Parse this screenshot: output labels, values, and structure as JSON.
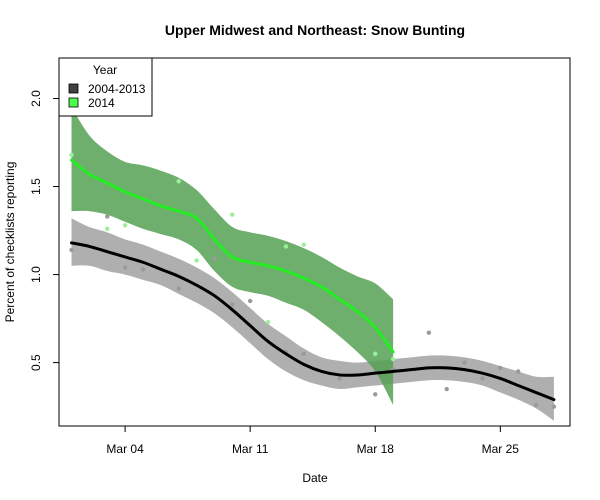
{
  "chart_data": {
    "type": "line",
    "title": "Upper Midwest and Northeast: Snow Bunting",
    "xlabel": "Date",
    "ylabel": "Percent of checklists reporting",
    "x_tick_labels": [
      {
        "label": "Mar 04",
        "day": 4
      },
      {
        "label": "Mar 11",
        "day": 11
      },
      {
        "label": "Mar 18",
        "day": 18
      },
      {
        "label": "Mar 25",
        "day": 25
      }
    ],
    "y_ticks": [
      0.5,
      1.0,
      1.5,
      2.0
    ],
    "y_tick_labels": [
      "0.5",
      "1.0",
      "1.5",
      "2.0"
    ],
    "xlim": [
      0.3,
      28.9
    ],
    "ylim": [
      0.14,
      2.23
    ],
    "grid": false,
    "legend": {
      "title": "Year",
      "position": "top-left",
      "entries": [
        {
          "name": "2004-2013",
          "color": "#404040"
        },
        {
          "name": "2014",
          "color": "#4cff4c"
        }
      ]
    },
    "series": [
      {
        "name": "2004-2013",
        "line_color": "#000000",
        "band_color": "#a6a6a6",
        "point_color": "#9a9a9a",
        "x": [
          1,
          2,
          3,
          4,
          5,
          6,
          7,
          8,
          9,
          10,
          11,
          12,
          13,
          14,
          15,
          16,
          17,
          18,
          19,
          20,
          21,
          22,
          23,
          24,
          25,
          26,
          27,
          28
        ],
        "fit": [
          1.18,
          1.16,
          1.13,
          1.1,
          1.07,
          1.03,
          0.99,
          0.94,
          0.88,
          0.8,
          0.71,
          0.62,
          0.55,
          0.49,
          0.45,
          0.43,
          0.43,
          0.44,
          0.45,
          0.46,
          0.47,
          0.47,
          0.46,
          0.44,
          0.41,
          0.37,
          0.33,
          0.29
        ],
        "lower": [
          1.05,
          1.05,
          1.02,
          1.0,
          0.97,
          0.94,
          0.89,
          0.84,
          0.78,
          0.7,
          0.61,
          0.52,
          0.45,
          0.4,
          0.37,
          0.35,
          0.36,
          0.37,
          0.38,
          0.39,
          0.4,
          0.4,
          0.39,
          0.37,
          0.33,
          0.29,
          0.24,
          0.17
        ],
        "upper": [
          1.32,
          1.27,
          1.24,
          1.2,
          1.17,
          1.13,
          1.09,
          1.04,
          0.98,
          0.9,
          0.81,
          0.72,
          0.65,
          0.58,
          0.53,
          0.51,
          0.5,
          0.51,
          0.52,
          0.53,
          0.54,
          0.54,
          0.53,
          0.51,
          0.48,
          0.45,
          0.42,
          0.42
        ],
        "points": [
          [
            1,
            1.14
          ],
          [
            3,
            1.33
          ],
          [
            4,
            1.04
          ],
          [
            5,
            1.03
          ],
          [
            7,
            0.92
          ],
          [
            9,
            1.09
          ],
          [
            10,
            0.83
          ],
          [
            11,
            0.85
          ],
          [
            13,
            0.56
          ],
          [
            14,
            0.55
          ],
          [
            16,
            0.41
          ],
          [
            18,
            0.32
          ],
          [
            19,
            0.46
          ],
          [
            21,
            0.67
          ],
          [
            22,
            0.35
          ],
          [
            23,
            0.5
          ],
          [
            24,
            0.41
          ],
          [
            25,
            0.47
          ],
          [
            26,
            0.45
          ],
          [
            27,
            0.26
          ],
          [
            28,
            0.25
          ]
        ]
      },
      {
        "name": "2014",
        "line_color": "#22ee22",
        "band_color": "#56a154",
        "point_color": "#9cf09c",
        "x": [
          1,
          2,
          3,
          4,
          5,
          6,
          7,
          8,
          9,
          10,
          11,
          12,
          13,
          14,
          15,
          16,
          17,
          18,
          19
        ],
        "fit": [
          1.65,
          1.57,
          1.52,
          1.47,
          1.43,
          1.39,
          1.36,
          1.32,
          1.2,
          1.1,
          1.07,
          1.05,
          1.02,
          0.98,
          0.93,
          0.86,
          0.79,
          0.7,
          0.56
        ],
        "lower": [
          1.36,
          1.36,
          1.34,
          1.3,
          1.26,
          1.23,
          1.2,
          1.14,
          1.02,
          0.93,
          0.9,
          0.88,
          0.84,
          0.8,
          0.73,
          0.65,
          0.56,
          0.45,
          0.26
        ],
        "upper": [
          1.95,
          1.79,
          1.7,
          1.64,
          1.62,
          1.59,
          1.55,
          1.48,
          1.37,
          1.27,
          1.24,
          1.22,
          1.19,
          1.15,
          1.1,
          1.04,
          0.99,
          0.95,
          0.86
        ],
        "points": [
          [
            1,
            1.68
          ],
          [
            3,
            1.26
          ],
          [
            4,
            1.28
          ],
          [
            7,
            1.53
          ],
          [
            8,
            1.08
          ],
          [
            10,
            1.34
          ],
          [
            12,
            0.73
          ],
          [
            13,
            1.16
          ],
          [
            14,
            1.17
          ],
          [
            18,
            0.55
          ],
          [
            19,
            0.52
          ]
        ]
      }
    ]
  }
}
